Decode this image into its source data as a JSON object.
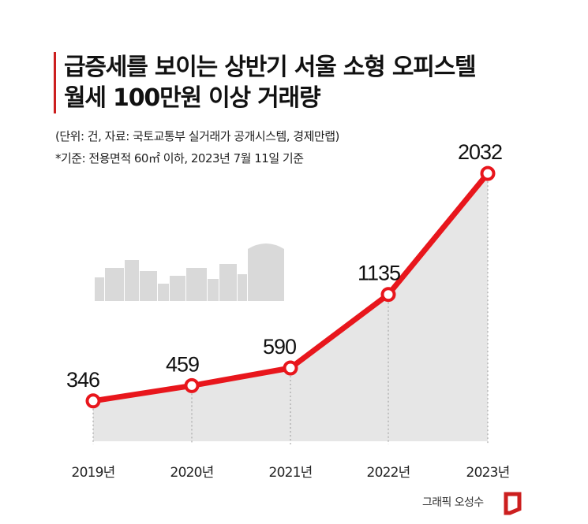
{
  "header": {
    "title_line1": "급증세를 보이는 상반기 서울 소형 오피스텔",
    "title_line2": "월세 100만원 이상 거래량",
    "note_unit": "(단위: 건, 자료: 국토교통부 실거래가 공개시스템, 경제만랩)",
    "note_basis": "*기준: 전용면적 60㎡ 이하, 2023년 7월 11일 기준"
  },
  "credit": "그래픽 오성수",
  "colors": {
    "line": "#e8161c",
    "area": "#e6e6e6",
    "skyline": "#d9d9d9",
    "brand": "#cc1f1f"
  },
  "chart_data": {
    "type": "line",
    "categories": [
      "2019년",
      "2020년",
      "2021년",
      "2022년",
      "2023년"
    ],
    "values": [
      346,
      459,
      590,
      1135,
      2032
    ],
    "data_labels": [
      "346",
      "459",
      "590",
      "1135",
      "2032"
    ],
    "title": "급증세를 보이는 상반기 서울 소형 오피스텔 월세 100만원 이상 거래량",
    "xlabel": "",
    "ylabel": "",
    "unit": "건",
    "grid": false,
    "area_fill": true
  }
}
